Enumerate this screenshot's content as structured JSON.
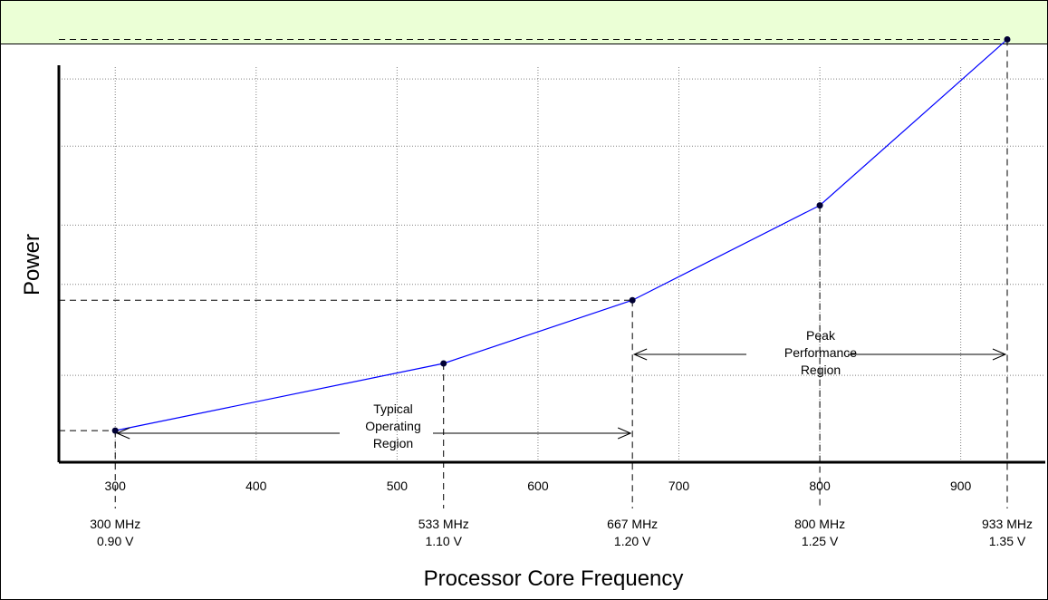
{
  "colors": {
    "header_bg": "#ebffd6",
    "series_line": "#0000ff",
    "point": "#000033",
    "grid": "#808080"
  },
  "chart_data": {
    "type": "line",
    "title": "",
    "xlabel": "Processor Core Frequency",
    "ylabel": "Power",
    "xlim": [
      260,
      960
    ],
    "xticks": [
      300,
      400,
      500,
      600,
      700,
      800,
      900
    ],
    "ylim": [
      0,
      100
    ],
    "yticks": [],
    "grid": true,
    "series": [
      {
        "x": [
          300,
          533,
          667,
          800,
          933
        ],
        "y": [
          8,
          25,
          41,
          65,
          107
        ]
      }
    ],
    "operating_points": [
      {
        "freq": 300,
        "frequency_label": "300 MHz",
        "voltage_label": "0.90 V"
      },
      {
        "freq": 533,
        "frequency_label": "533 MHz",
        "voltage_label": "1.10 V"
      },
      {
        "freq": 667,
        "frequency_label": "667 MHz",
        "voltage_label": "1.20 V"
      },
      {
        "freq": 800,
        "frequency_label": "800 MHz",
        "voltage_label": "1.25 V"
      },
      {
        "freq": 933,
        "frequency_label": "933 MHz",
        "voltage_label": "1.35 V"
      }
    ],
    "annotations": [
      {
        "name": "typical-operating-region",
        "lines": [
          "Typical",
          "Operating",
          "Region"
        ],
        "from": 300,
        "to": 667
      },
      {
        "name": "peak-performance-region",
        "lines": [
          "Peak",
          "Performance",
          "Region"
        ],
        "from": 667,
        "to": 933
      }
    ]
  }
}
